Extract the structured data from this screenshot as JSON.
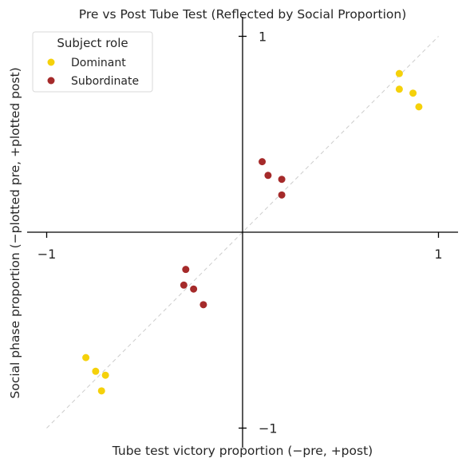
{
  "chart_data": {
    "type": "scatter",
    "title": "Pre vs Post Tube Test (Reflected by Social Proportion)",
    "xlabel": "Tube test victory proportion (−pre, +post)",
    "ylabel": "Social phase proportion (−plotted pre, +plotted post)",
    "xlim": [
      -1.1,
      1.1
    ],
    "ylim": [
      -1.1,
      1.1
    ],
    "x_ticks": [
      {
        "value": -1,
        "label": "−1"
      },
      {
        "value": 1,
        "label": "1"
      }
    ],
    "y_ticks": [
      {
        "value": 1,
        "label": "1"
      },
      {
        "value": -1,
        "label": "−1"
      }
    ],
    "reference_line": {
      "style": "dashed",
      "color": "#cccccc",
      "from": [
        -1,
        -1
      ],
      "to": [
        1,
        1
      ]
    },
    "legend": {
      "title": "Subject role",
      "position": "top-left"
    },
    "grid": false,
    "series": [
      {
        "name": "Dominant",
        "color": "#f5d10a",
        "points": [
          [
            0.8,
            0.81
          ],
          [
            0.8,
            0.73
          ],
          [
            0.87,
            0.71
          ],
          [
            0.9,
            0.64
          ],
          [
            -0.8,
            -0.64
          ],
          [
            -0.75,
            -0.71
          ],
          [
            -0.7,
            -0.73
          ],
          [
            -0.72,
            -0.81
          ]
        ]
      },
      {
        "name": "Subordinate",
        "color": "#a52a2a",
        "points": [
          [
            0.1,
            0.36
          ],
          [
            0.13,
            0.29
          ],
          [
            0.2,
            0.27
          ],
          [
            0.2,
            0.19
          ],
          [
            -0.29,
            -0.19
          ],
          [
            -0.3,
            -0.27
          ],
          [
            -0.25,
            -0.29
          ],
          [
            -0.2,
            -0.37
          ]
        ]
      }
    ]
  }
}
